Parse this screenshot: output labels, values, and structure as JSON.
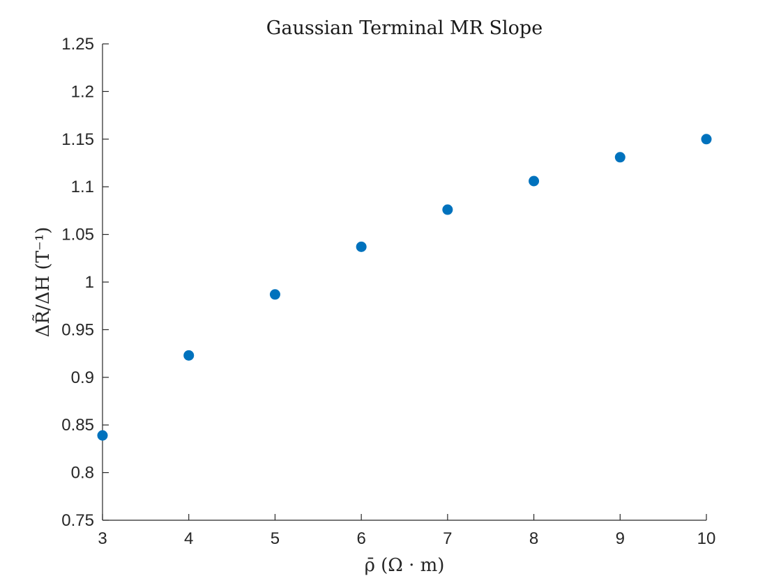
{
  "chart_data": {
    "type": "scatter",
    "title": "Gaussian Terminal MR Slope",
    "xlabel": "ρ̄ (Ω · m)",
    "ylabel": "ΔR̃/ΔH (T⁻¹)",
    "xlim": [
      3,
      10
    ],
    "ylim": [
      0.75,
      1.25
    ],
    "xticks": [
      "3",
      "4",
      "5",
      "6",
      "7",
      "8",
      "9",
      "10"
    ],
    "yticks": [
      "0.75",
      "0.8",
      "0.85",
      "0.9",
      "0.95",
      "1",
      "1.05",
      "1.1",
      "1.15",
      "1.2",
      "1.25"
    ],
    "grid": false,
    "marker_color": "#0072BD",
    "series": [
      {
        "x": [
          3,
          4,
          5,
          6,
          7,
          8,
          9,
          10
        ],
        "y": [
          0.839,
          0.923,
          0.987,
          1.037,
          1.076,
          1.106,
          1.131,
          1.15
        ]
      }
    ]
  }
}
